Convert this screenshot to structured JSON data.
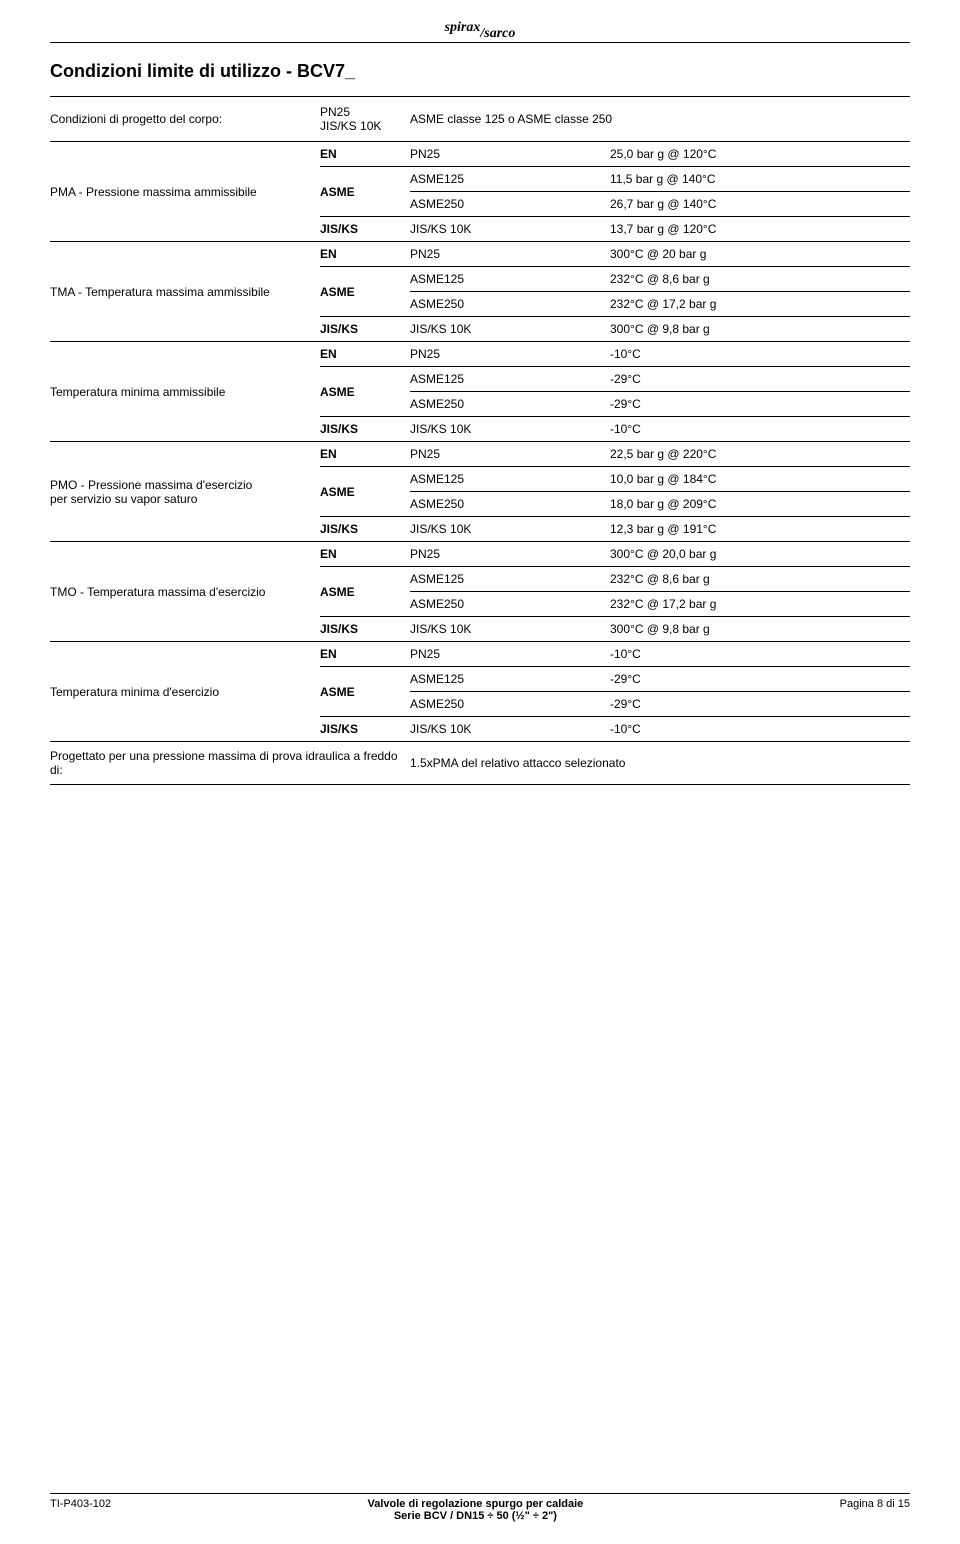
{
  "logo": {
    "part1": "spirax",
    "part2": "sarco"
  },
  "title": "Condizioni limite di utilizzo - BCV7_",
  "design": {
    "label": "Condizioni di progetto del corpo:",
    "left": "PN25\nJIS/KS 10K",
    "right": "ASME classe 125 o ASME classe 250"
  },
  "sections": [
    {
      "label": "PMA - Pressione massima ammissibile",
      "rows": [
        {
          "std": "EN",
          "sub": "PN25",
          "val": "25,0 bar g @ 120°C",
          "rule": "thick"
        },
        {
          "std": "ASME",
          "span": 2,
          "sub": "ASME125",
          "val": "11,5 bar g @ 140°C",
          "rule": "thin"
        },
        {
          "sub": "ASME250",
          "val": "26,7 bar g @ 140°C",
          "rule": "thin"
        },
        {
          "std": "JIS/KS",
          "sub": "JIS/KS 10K",
          "val": "13,7 bar g @ 120°C",
          "rule": "thin"
        }
      ]
    },
    {
      "label": "TMA - Temperatura massima ammissibile",
      "rows": [
        {
          "std": "EN",
          "sub": "PN25",
          "val": "300°C @ 20 bar g",
          "rule": "thick"
        },
        {
          "std": "ASME",
          "span": 2,
          "sub": "ASME125",
          "val": "232°C @ 8,6 bar g",
          "rule": "thin"
        },
        {
          "sub": "ASME250",
          "val": "232°C @ 17,2 bar g",
          "rule": "thin"
        },
        {
          "std": "JIS/KS",
          "sub": "JIS/KS 10K",
          "val": "300°C @ 9,8 bar g",
          "rule": "thin"
        }
      ]
    },
    {
      "label": "Temperatura minima ammissibile",
      "rows": [
        {
          "std": "EN",
          "sub": "PN25",
          "val": "-10°C",
          "rule": "thick"
        },
        {
          "std": "ASME",
          "span": 2,
          "sub": "ASME125",
          "val": "-29°C",
          "rule": "thin"
        },
        {
          "sub": "ASME250",
          "val": "-29°C",
          "rule": "thin"
        },
        {
          "std": "JIS/KS",
          "sub": "JIS/KS 10K",
          "val": "-10°C",
          "rule": "thin"
        }
      ]
    },
    {
      "label": "PMO - Pressione massima d'esercizio\nper servizio su vapor saturo",
      "rows": [
        {
          "std": "EN",
          "sub": "PN25",
          "val": "22,5 bar g @ 220°C",
          "rule": "thick"
        },
        {
          "std": "ASME",
          "span": 2,
          "sub": "ASME125",
          "val": "10,0 bar g @ 184°C",
          "rule": "thin"
        },
        {
          "sub": "ASME250",
          "val": "18,0 bar g @ 209°C",
          "rule": "thin"
        },
        {
          "std": "JIS/KS",
          "sub": "JIS/KS 10K",
          "val": "12,3 bar g @ 191°C",
          "rule": "thin"
        }
      ]
    },
    {
      "label": "TMO - Temperatura massima d'esercizio",
      "rows": [
        {
          "std": "EN",
          "sub": "PN25",
          "val": "300°C @ 20,0 bar g",
          "rule": "thick"
        },
        {
          "std": "ASME",
          "span": 2,
          "sub": "ASME125",
          "val": "232°C @ 8,6 bar g",
          "rule": "thin"
        },
        {
          "sub": "ASME250",
          "val": "232°C @ 17,2 bar g",
          "rule": "thin"
        },
        {
          "std": "JIS/KS",
          "sub": "JIS/KS 10K",
          "val": "300°C @ 9,8 bar g",
          "rule": "thin"
        }
      ]
    },
    {
      "label": "Temperatura minima d'esercizio",
      "rows": [
        {
          "std": "EN",
          "sub": "PN25",
          "val": "-10°C",
          "rule": "thick"
        },
        {
          "std": "ASME",
          "span": 2,
          "sub": "ASME125",
          "val": "-29°C",
          "rule": "thin"
        },
        {
          "sub": "ASME250",
          "val": "-29°C",
          "rule": "thin"
        },
        {
          "std": "JIS/KS",
          "sub": "JIS/KS 10K",
          "val": "-10°C",
          "rule": "thin"
        }
      ]
    }
  ],
  "final": {
    "label": "Progettato per una pressione massima di prova idraulica a freddo di:",
    "val": "1.5xPMA del relativo attacco selezionato"
  },
  "footer": {
    "left": "TI-P403-102",
    "center_l1": "Valvole di regolazione spurgo per caldaie",
    "center_l2": "Serie BCV / DN15 ÷ 50 (½\" ÷ 2\")",
    "right": "Pagina 8 di 15"
  }
}
